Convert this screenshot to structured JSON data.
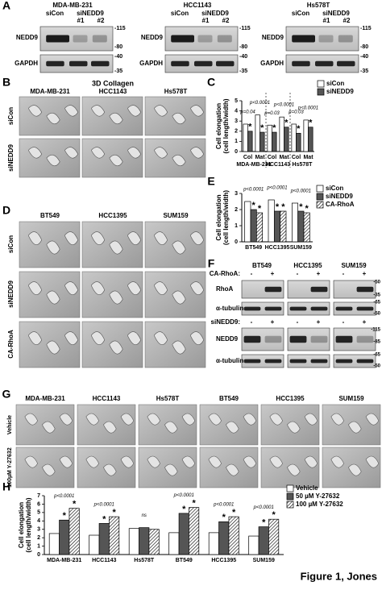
{
  "panel_labels": [
    "A",
    "B",
    "C",
    "D",
    "E",
    "F",
    "G",
    "H"
  ],
  "panel_a": {
    "cell_lines": [
      "MDA-MB-231",
      "HCC1143",
      "Hs578T"
    ],
    "lanes": [
      "siCon",
      "siNEDD9"
    ],
    "replicates": [
      "#1",
      "#2"
    ],
    "proteins": [
      "NEDD9",
      "GAPDH"
    ],
    "markers": [
      "-115",
      "-80",
      "-40",
      "-35"
    ]
  },
  "panel_b": {
    "title": "3D Collagen",
    "columns": [
      "MDA-MB-231",
      "HCC1143",
      "Hs578T"
    ],
    "rows": [
      "siCon",
      "siNEDD9"
    ]
  },
  "panel_d": {
    "columns": [
      "BT549",
      "HCC1395",
      "SUM159"
    ],
    "rows": [
      "siCon",
      "siNEDD9",
      "CA-RhoA"
    ]
  },
  "panel_f": {
    "columns": [
      "BT549",
      "HCC1395",
      "SUM159"
    ],
    "ca_rhoa_label": "CA-RhoA:",
    "sinedd9_label": "siNEDD9:",
    "minus": "-",
    "plus": "+",
    "proteins": [
      "RhoA",
      "α-tubulin",
      "NEDD9",
      "α-tubulin"
    ],
    "markers": [
      "-50",
      "-35",
      "-65",
      "-50",
      "-115",
      "-85",
      "-65",
      "-50"
    ]
  },
  "panel_g": {
    "columns": [
      "MDA-MB-231",
      "HCC1143",
      "Hs578T",
      "BT549",
      "HCC1395",
      "SUM159"
    ],
    "rows": [
      "Vehicle",
      "100µM Y-27632"
    ]
  },
  "footer": "Figure 1, Jones",
  "chart_data": [
    {
      "type": "bar",
      "ylabel": [
        "Cell elongation",
        "(cell length/width)"
      ],
      "categories": [
        "Col",
        "Mat",
        "Col",
        "Mat",
        "Col",
        "Mat"
      ],
      "groups": [
        "MDA-MB-231",
        "HCC1143",
        "Hs578T"
      ],
      "annotations": [
        "p=0.04",
        "p<0.0001",
        "p=0.03",
        "p<0.0001",
        "p=0.03",
        "p<0.0001"
      ],
      "significance": "*",
      "ylim": [
        0,
        5
      ],
      "yticks": [
        0,
        1,
        2,
        3,
        4,
        5
      ],
      "series": [
        {
          "name": "siCon",
          "color": "#ffffff",
          "values": [
            2.7,
            3.6,
            2.6,
            3.4,
            2.7,
            3.1
          ],
          "stars": [
            false,
            false,
            false,
            false,
            false,
            false
          ]
        },
        {
          "name": "siNEDD9",
          "color": "#555555",
          "values": [
            2.0,
            1.9,
            1.9,
            2.4,
            1.8,
            2.4
          ],
          "stars": [
            true,
            true,
            true,
            true,
            true,
            true
          ]
        }
      ]
    },
    {
      "type": "bar",
      "ylabel": [
        "Cell elongation",
        "(cell length/width)"
      ],
      "categories": [
        "BT549",
        "HCC1395",
        "SUM159"
      ],
      "annotations": [
        "p<0.0001",
        "p<0.0001",
        "p<0.0001"
      ],
      "significance": "*",
      "ylim": [
        0,
        3
      ],
      "yticks": [
        0,
        1,
        2,
        3
      ],
      "series": [
        {
          "name": "siCon",
          "color": "#ffffff",
          "values": [
            2.5,
            2.6,
            2.4
          ],
          "stars": [
            false,
            false,
            false
          ]
        },
        {
          "name": "siNEDD9",
          "color": "#555555",
          "values": [
            2.0,
            1.9,
            1.9
          ],
          "stars": [
            true,
            true,
            true
          ]
        },
        {
          "name": "CA-RhoA",
          "color": "#ffffff",
          "hatch": true,
          "values": [
            1.8,
            1.9,
            1.8
          ],
          "stars": [
            true,
            true,
            true
          ]
        }
      ]
    },
    {
      "type": "bar",
      "ylabel": [
        "Cell elongation",
        "(cell length/width)"
      ],
      "categories": [
        "MDA-MB-231",
        "HCC1143",
        "Hs578T",
        "BT549",
        "HCC1395",
        "SUM159"
      ],
      "annotations": [
        "p<0.0001",
        "p<0.0001",
        "ns",
        "p<0.0001",
        "p<0.0001",
        "p<0.0001"
      ],
      "significance": "*",
      "ylim": [
        0,
        7
      ],
      "yticks": [
        0,
        1,
        2,
        3,
        4,
        5,
        6,
        7
      ],
      "series": [
        {
          "name": "Vehicle",
          "color": "#ffffff",
          "values": [
            2.5,
            2.3,
            3.1,
            2.6,
            2.6,
            2.2
          ],
          "stars": [
            false,
            false,
            false,
            false,
            false,
            false
          ]
        },
        {
          "name": "50 µM Y-27632",
          "color": "#555555",
          "values": [
            4.1,
            3.7,
            3.2,
            4.9,
            3.9,
            3.3
          ],
          "stars": [
            true,
            true,
            false,
            true,
            true,
            true
          ]
        },
        {
          "name": "100 µM Y-27632",
          "color": "#ffffff",
          "hatch": true,
          "values": [
            5.5,
            4.5,
            3.0,
            5.6,
            4.5,
            4.2
          ],
          "stars": [
            true,
            true,
            false,
            true,
            true,
            true
          ]
        }
      ]
    }
  ]
}
